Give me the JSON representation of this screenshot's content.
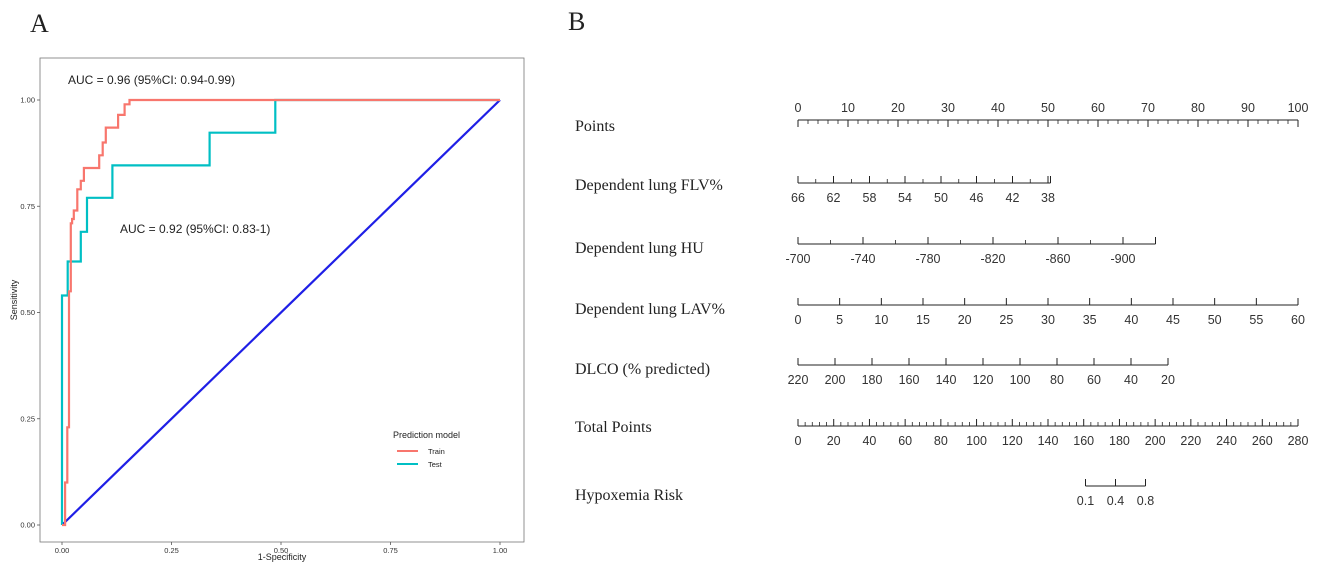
{
  "colors": {
    "train": "#F8766D",
    "test": "#00BFC4",
    "reference": "#1F1FE6",
    "axis": "#333333",
    "text": "#222222"
  },
  "panel_a": {
    "label": "A",
    "annotation_train": "AUC = 0.96 (95%CI: 0.94-0.99)",
    "annotation_test": "AUC = 0.92 (95%CI: 0.83-1)"
  },
  "panel_b": {
    "label": "B"
  },
  "chart_data": [
    {
      "type": "line",
      "subtype": "roc",
      "title": "",
      "xlabel": "1-Specificity",
      "ylabel": "Sensitivity",
      "xlim": [
        0,
        1
      ],
      "ylim": [
        0,
        1
      ],
      "xticks": [
        0,
        0.25,
        0.5,
        0.75,
        1
      ],
      "yticks": [
        0,
        0.25,
        0.5,
        0.75,
        1
      ],
      "xtick_labels": [
        "0.00",
        "0.25",
        "0.50",
        "0.75",
        "1.00"
      ],
      "ytick_labels": [
        "0.00",
        "0.25",
        "0.50",
        "0.75",
        "1.00"
      ],
      "grid": false,
      "legend": {
        "title": "Prediction model",
        "placement": "bottom-right"
      },
      "series": [
        {
          "name": "Train",
          "color": "#F8766D",
          "x": [
            0,
            0.007,
            0.007,
            0.012,
            0.012,
            0.016,
            0.016,
            0.02,
            0.02,
            0.023,
            0.023,
            0.027,
            0.027,
            0.035,
            0.035,
            0.043,
            0.043,
            0.05,
            0.05,
            0.085,
            0.085,
            0.093,
            0.093,
            0.1,
            0.1,
            0.128,
            0.128,
            0.143,
            0.143,
            0.154,
            0.154,
            1
          ],
          "y": [
            0,
            0,
            0.1,
            0.1,
            0.23,
            0.23,
            0.55,
            0.55,
            0.71,
            0.71,
            0.72,
            0.72,
            0.74,
            0.74,
            0.79,
            0.79,
            0.81,
            0.81,
            0.84,
            0.84,
            0.87,
            0.87,
            0.9,
            0.9,
            0.935,
            0.935,
            0.965,
            0.965,
            0.99,
            0.99,
            1,
            1
          ]
        },
        {
          "name": "Test",
          "color": "#00BFC4",
          "x": [
            0,
            0,
            0.013,
            0.013,
            0.043,
            0.043,
            0.057,
            0.057,
            0.115,
            0.115,
            0.337,
            0.337,
            0.487,
            0.487,
            1
          ],
          "y": [
            0,
            0.54,
            0.54,
            0.62,
            0.62,
            0.69,
            0.69,
            0.77,
            0.77,
            0.846,
            0.846,
            0.923,
            0.923,
            1,
            1
          ]
        },
        {
          "name": "",
          "color": "#1F1FE6",
          "x": [
            0,
            1
          ],
          "y": [
            0,
            1
          ]
        }
      ]
    },
    {
      "type": "nomogram",
      "title": "",
      "rows": [
        {
          "name": "Points",
          "ticks": [
            "0",
            "10",
            "20",
            "30",
            "40",
            "50",
            "60",
            "70",
            "80",
            "90",
            "100"
          ],
          "tick_points": [
            0,
            10,
            20,
            30,
            40,
            50,
            60,
            70,
            80,
            90,
            100
          ],
          "labels_above": true,
          "minor": 4
        },
        {
          "name": "Dependent lung FLV%",
          "ticks": [
            "66",
            "62",
            "58",
            "54",
            "50",
            "46",
            "42",
            "38"
          ],
          "tick_points": [
            0,
            7.1,
            14.3,
            21.4,
            28.6,
            35.7,
            42.9,
            50
          ],
          "range_points": [
            0,
            50.5
          ],
          "labels_above": false,
          "minor": 1
        },
        {
          "name": "Dependent lung HU",
          "ticks": [
            "-700",
            "-740",
            "-780",
            "-820",
            "-860",
            "-900"
          ],
          "tick_points": [
            0,
            13,
            26,
            39,
            52,
            65
          ],
          "range_points": [
            0,
            71.5
          ],
          "labels_above": false,
          "minor": 1
        },
        {
          "name": "Dependent lung LAV%",
          "ticks": [
            "0",
            "5",
            "10",
            "15",
            "20",
            "25",
            "30",
            "35",
            "40",
            "45",
            "50",
            "55",
            "60"
          ],
          "tick_points": [
            0,
            8.33,
            16.67,
            25,
            33.33,
            41.67,
            50,
            58.33,
            66.67,
            75,
            83.33,
            91.67,
            100
          ],
          "range_points": [
            0,
            100
          ],
          "labels_above": false,
          "minor": 0
        },
        {
          "name": "DLCO (% predicted)",
          "ticks": [
            "220",
            "200",
            "180",
            "160",
            "140",
            "120",
            "100",
            "80",
            "60",
            "40",
            "20"
          ],
          "tick_points": [
            0,
            7.4,
            14.8,
            22.2,
            29.6,
            37,
            44.4,
            51.8,
            59.2,
            66.6,
            74
          ],
          "range_points": [
            0,
            74
          ],
          "labels_above": false,
          "minor": 0
        },
        {
          "name": "Total Points",
          "ticks": [
            "0",
            "20",
            "40",
            "60",
            "80",
            "100",
            "120",
            "140",
            "160",
            "180",
            "200",
            "220",
            "240",
            "260",
            "280"
          ],
          "tick_points": [
            0,
            7.14,
            14.29,
            21.43,
            28.57,
            35.71,
            42.86,
            50,
            57.14,
            64.29,
            71.43,
            78.57,
            85.71,
            92.86,
            100
          ],
          "labels_above": false,
          "minor": 4
        },
        {
          "name": "Hypoxemia Risk",
          "ticks": [
            "0.1",
            "0.4",
            "0.8"
          ],
          "tick_points": [
            57.5,
            63.5,
            69.5
          ],
          "range_points": [
            57.5,
            69.5
          ],
          "labels_above": false,
          "minor": 0
        }
      ]
    }
  ]
}
